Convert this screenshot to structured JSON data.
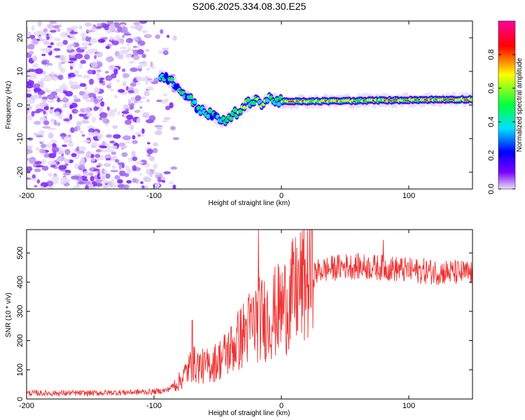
{
  "title": "S206.2025.334.08.30.E25",
  "chart_data": [
    {
      "type": "heatmap",
      "xlabel": "Height of straight line (km)",
      "ylabel": "Frequency (Hz)",
      "xlim": [
        -200,
        150
      ],
      "ylim": [
        -25,
        25
      ],
      "x_ticks": [
        -200,
        -100,
        0,
        100
      ],
      "x_tick_labels": [
        "-200",
        "-100",
        "0",
        "100"
      ],
      "y_ticks": [
        -20,
        -10,
        0,
        10,
        20
      ],
      "y_tick_labels": [
        "-20",
        "-10",
        "0",
        "10",
        "20"
      ],
      "colorbar": {
        "label": "Normalized spectral amplitude",
        "range": [
          0,
          1
        ],
        "ticks": [
          0,
          0.2,
          0.4,
          0.6,
          0.8
        ],
        "tick_labels": [
          "0.0",
          "0.2",
          "0.4",
          "0.6",
          "0.8"
        ],
        "colormap": [
          "#e8e0f8",
          "#7a00ff",
          "#0000ff",
          "#00e0ff",
          "#00ff40",
          "#ffff00",
          "#ff0000",
          "#ff00a0"
        ]
      },
      "noise_region": {
        "x_range": [
          -200,
          -95
        ],
        "freq_range": [
          -25,
          25
        ]
      },
      "ridge": [
        {
          "x": -95,
          "freq": 9
        },
        {
          "x": -85,
          "freq": 6.5
        },
        {
          "x": -75,
          "freq": 3
        },
        {
          "x": -65,
          "freq": -1
        },
        {
          "x": -55,
          "freq": -3
        },
        {
          "x": -45,
          "freq": -5
        },
        {
          "x": -38,
          "freq": -3
        },
        {
          "x": -30,
          "freq": -1
        },
        {
          "x": -25,
          "freq": 1
        },
        {
          "x": -20,
          "freq": 2
        },
        {
          "x": -15,
          "freq": 0
        },
        {
          "x": -10,
          "freq": 2
        },
        {
          "x": 0,
          "freq": 1
        },
        {
          "x": 50,
          "freq": 1.2
        },
        {
          "x": 100,
          "freq": 1.5
        },
        {
          "x": 150,
          "freq": 1.7
        }
      ]
    },
    {
      "type": "line",
      "xlabel": "Height of straight line (km)",
      "ylabel": "SNR (10 * v/v)",
      "xlim": [
        -200,
        150
      ],
      "ylim": [
        0,
        580
      ],
      "x_ticks": [
        -200,
        -100,
        0,
        100
      ],
      "x_tick_labels": [
        "-200",
        "-100",
        "0",
        "100"
      ],
      "y_ticks": [
        0,
        100,
        200,
        300,
        400,
        500
      ],
      "y_tick_labels": [
        "0",
        "100",
        "200",
        "300",
        "400",
        "500"
      ],
      "series": [
        {
          "name": "SNR",
          "color": "#ee3333",
          "envelope": [
            {
              "x": -200,
              "value": 20
            },
            {
              "x": -150,
              "value": 20
            },
            {
              "x": -100,
              "value": 25
            },
            {
              "x": -90,
              "value": 30
            },
            {
              "x": -80,
              "value": 60
            },
            {
              "x": -70,
              "value": 120
            },
            {
              "x": -60,
              "value": 110
            },
            {
              "x": -50,
              "value": 130
            },
            {
              "x": -40,
              "value": 170
            },
            {
              "x": -30,
              "value": 220
            },
            {
              "x": -20,
              "value": 270
            },
            {
              "x": -10,
              "value": 280
            },
            {
              "x": 0,
              "value": 310
            },
            {
              "x": 10,
              "value": 360
            },
            {
              "x": 20,
              "value": 410
            },
            {
              "x": 30,
              "value": 440
            },
            {
              "x": 50,
              "value": 455
            },
            {
              "x": 80,
              "value": 450
            },
            {
              "x": 100,
              "value": 440
            },
            {
              "x": 150,
              "value": 430
            }
          ],
          "peaks": [
            {
              "x": -70,
              "value": 270
            },
            {
              "x": -18,
              "value": 580
            },
            {
              "x": 80,
              "value": 545
            }
          ]
        }
      ]
    }
  ]
}
